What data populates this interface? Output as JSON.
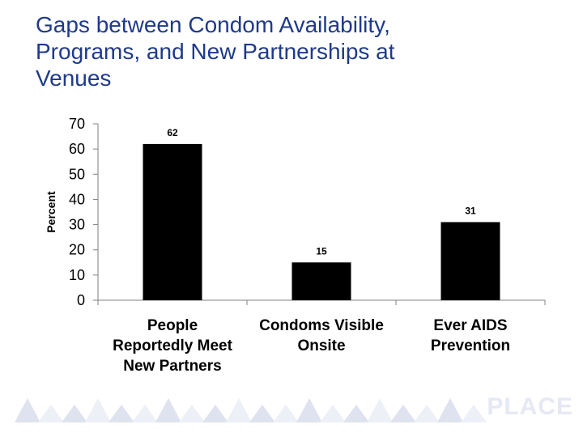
{
  "header": {
    "title_lines": [
      "Gaps between Condom Availability,",
      "Programs, and New Partnerships at",
      "Venues"
    ]
  },
  "chart_data": {
    "type": "bar",
    "title": "Gaps between Condom Availability, Programs, and New Partnerships at Venues",
    "categories": [
      [
        "People",
        "Reportedly Meet",
        "New Partners"
      ],
      [
        "Condoms Visible",
        "Onsite"
      ],
      [
        "Ever AIDS",
        "Prevention"
      ]
    ],
    "values": [
      62,
      15,
      31
    ],
    "data_labels": [
      "62",
      "15",
      "31"
    ],
    "xlabel": "",
    "ylabel": "Percent",
    "ylim": [
      0,
      70
    ],
    "yticks": [
      0,
      10,
      20,
      30,
      40,
      50,
      60,
      70
    ],
    "grid": false,
    "legend": "none",
    "bar_color": "#000000"
  },
  "branding": {
    "logo_text": "PLACE"
  },
  "colors": {
    "title": "#1f3a8a",
    "logo": "#e6e8f4",
    "triangles": "#dfe2ef"
  }
}
